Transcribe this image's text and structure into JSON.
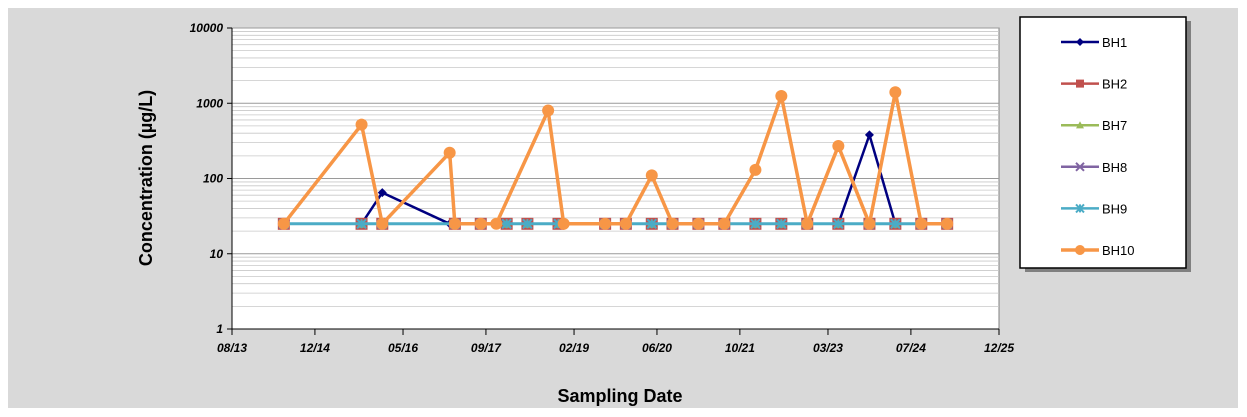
{
  "chart_data": {
    "type": "line",
    "xlabel": "Sampling Date",
    "ylabel": "Concentration (µg/L)",
    "y_scale": "log",
    "ylim": [
      1,
      10000
    ],
    "y_ticks": [
      1,
      10,
      100,
      1000,
      10000
    ],
    "y_tick_labels": [
      "1",
      "10",
      "100",
      "1000",
      "10000"
    ],
    "x_ticks": [
      "2013-08",
      "2014-12",
      "2016-05",
      "2017-09",
      "2019-02",
      "2020-06",
      "2021-10",
      "2023-03",
      "2024-07",
      "2025-12"
    ],
    "x_tick_labels": [
      "08/13",
      "12/14",
      "05/16",
      "09/17",
      "02/19",
      "06/20",
      "10/21",
      "03/23",
      "07/24",
      "12/25"
    ],
    "xlim": [
      "2013-08",
      "2025-12"
    ],
    "grid": true,
    "legend_position": "right",
    "series": [
      {
        "name": "BH1",
        "color": "#000080",
        "marker": "diamond",
        "x": [
          "2014-06",
          "2015-09",
          "2016-01",
          "2017-02",
          "2017-03",
          "2017-08",
          "2018-01",
          "2018-05",
          "2018-11",
          "2019-08",
          "2019-12",
          "2020-05",
          "2020-09",
          "2021-02",
          "2021-07",
          "2022-01",
          "2022-06",
          "2022-11",
          "2023-05",
          "2023-11",
          "2024-04",
          "2024-09",
          "2025-02"
        ],
        "y": [
          25,
          25,
          65,
          25,
          25,
          25,
          25,
          25,
          25,
          25,
          25,
          25,
          25,
          25,
          25,
          25,
          25,
          25,
          25,
          380,
          25,
          25,
          25
        ]
      },
      {
        "name": "BH2",
        "color": "#c0504d",
        "marker": "square",
        "x": [
          "2014-06",
          "2015-09",
          "2016-01",
          "2017-03",
          "2017-08",
          "2018-01",
          "2018-05",
          "2018-11",
          "2019-08",
          "2019-12",
          "2020-05",
          "2020-09",
          "2021-02",
          "2021-07",
          "2022-01",
          "2022-06",
          "2022-11",
          "2023-05",
          "2023-11",
          "2024-04",
          "2024-09",
          "2025-02"
        ],
        "y": [
          25,
          25,
          25,
          25,
          25,
          25,
          25,
          25,
          25,
          25,
          25,
          25,
          25,
          25,
          25,
          25,
          25,
          25,
          25,
          25,
          25,
          25
        ]
      },
      {
        "name": "BH7",
        "color": "#9bbb59",
        "marker": "triangle",
        "x": [
          "2014-06",
          "2015-09",
          "2016-01",
          "2017-03",
          "2017-08",
          "2018-01",
          "2018-05",
          "2018-11",
          "2019-08",
          "2019-12",
          "2020-05",
          "2020-09",
          "2021-02",
          "2021-07",
          "2022-01",
          "2022-06",
          "2022-11",
          "2023-05",
          "2023-11",
          "2024-04",
          "2024-09",
          "2025-02"
        ],
        "y": [
          25,
          25,
          25,
          25,
          25,
          25,
          25,
          25,
          25,
          25,
          25,
          25,
          25,
          25,
          25,
          25,
          25,
          25,
          25,
          25,
          25,
          25
        ]
      },
      {
        "name": "BH8",
        "color": "#8064a2",
        "marker": "x",
        "x": [
          "2014-06",
          "2015-09",
          "2016-01",
          "2017-03",
          "2017-08",
          "2018-01",
          "2018-05",
          "2018-11",
          "2019-08",
          "2019-12",
          "2020-05",
          "2020-09",
          "2021-02",
          "2021-07",
          "2022-01",
          "2022-06",
          "2022-11",
          "2023-05",
          "2023-11",
          "2024-04",
          "2024-09",
          "2025-02"
        ],
        "y": [
          25,
          25,
          25,
          25,
          25,
          25,
          25,
          25,
          25,
          25,
          25,
          25,
          25,
          25,
          25,
          25,
          25,
          25,
          25,
          25,
          25,
          25
        ]
      },
      {
        "name": "BH9",
        "color": "#4bacc6",
        "marker": "star",
        "x": [
          "2014-06",
          "2015-09",
          "2016-01",
          "2017-03",
          "2017-08",
          "2018-01",
          "2018-05",
          "2018-11",
          "2019-08",
          "2019-12",
          "2020-05",
          "2020-09",
          "2021-02",
          "2021-07",
          "2022-01",
          "2022-06",
          "2022-11",
          "2023-05",
          "2023-11",
          "2024-04",
          "2024-09",
          "2025-02"
        ],
        "y": [
          25,
          25,
          25,
          25,
          25,
          25,
          25,
          25,
          25,
          25,
          25,
          25,
          25,
          25,
          25,
          25,
          25,
          25,
          25,
          25,
          25,
          25
        ]
      },
      {
        "name": "BH10",
        "color": "#f79646",
        "marker": "circle",
        "x": [
          "2014-06",
          "2015-09",
          "2016-01",
          "2017-02",
          "2017-03",
          "2017-08",
          "2017-11",
          "2018-09",
          "2018-12",
          "2019-08",
          "2019-12",
          "2020-05",
          "2020-09",
          "2021-02",
          "2021-07",
          "2022-01",
          "2022-06",
          "2022-11",
          "2023-05",
          "2023-11",
          "2024-04",
          "2024-09",
          "2025-02"
        ],
        "y": [
          25,
          520,
          25,
          220,
          25,
          25,
          25,
          800,
          25,
          25,
          25,
          110,
          25,
          25,
          25,
          130,
          1250,
          25,
          270,
          25,
          1400,
          25,
          25
        ]
      }
    ]
  }
}
